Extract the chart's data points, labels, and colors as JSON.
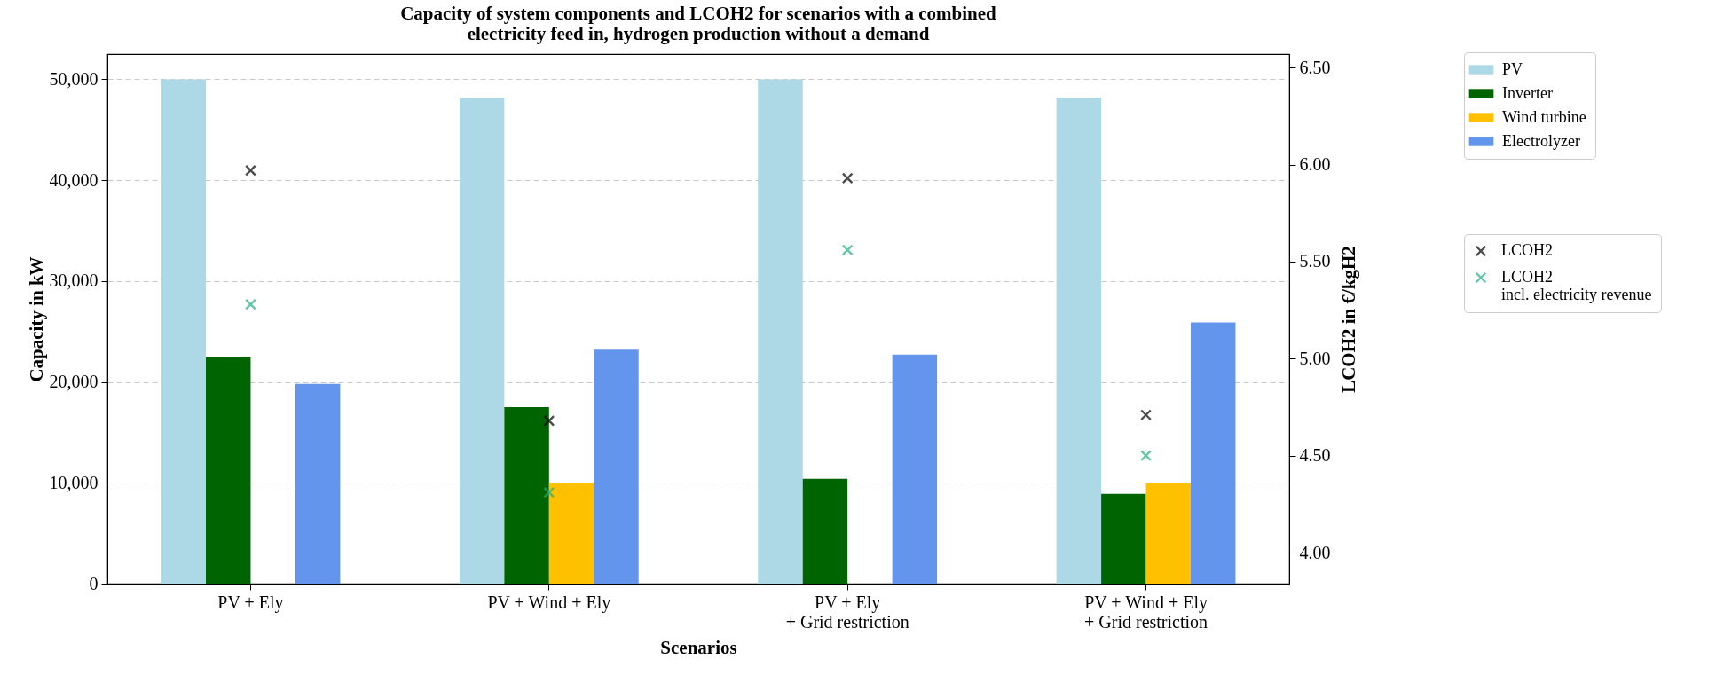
{
  "chart_data": {
    "type": "bar",
    "title": "Capacity of system components and LCOH2 for scenarios with a combined\nelectricity feed in, hydrogen production without a demand",
    "xlabel": "Scenarios",
    "ylabel": "Capacity in kW",
    "y2label": "LCOH2 in €/kgH2",
    "categories": [
      "PV + Ely",
      "PV + Wind + Ely",
      "PV + Ely\n+ Grid restriction",
      "PV + Wind + Ely\n+ Grid restriction"
    ],
    "series": [
      {
        "name": "PV",
        "color": "#add8e6",
        "values": [
          50000,
          48200,
          50000,
          48200
        ]
      },
      {
        "name": "Inverter",
        "color": "#006400",
        "values": [
          22500,
          17500,
          10400,
          8900
        ]
      },
      {
        "name": "Wind turbine",
        "color": "#ffc000",
        "values": [
          null,
          10000,
          null,
          10000
        ]
      },
      {
        "name": "Electrolyzer",
        "color": "#6495ed",
        "values": [
          19800,
          23200,
          22700,
          25900
        ]
      },
      {
        "name": "LCOH2",
        "type": "scatter",
        "axis": "y2",
        "marker": "cross",
        "color": "#000000",
        "values": [
          5.97,
          4.68,
          5.93,
          4.71
        ]
      },
      {
        "name": "LCOH2\nincl. electricity revenue",
        "type": "scatter",
        "axis": "y2",
        "marker": "cross",
        "color": "#22b07d",
        "values": [
          5.28,
          4.31,
          5.56,
          4.5
        ]
      }
    ],
    "ylim": [
      0,
      52500
    ],
    "yticks": [
      0,
      {
        "value": 10000,
        "label": "10,000"
      },
      {
        "value": 20000,
        "label": "20,000"
      },
      {
        "value": 30000,
        "label": "30,000"
      },
      {
        "value": 40000,
        "label": "40,000"
      },
      {
        "value": 50000,
        "label": "50,000"
      }
    ],
    "y2lim": [
      3.84,
      6.57
    ],
    "y2ticks": [
      {
        "value": 4,
        "label": "4.00"
      },
      {
        "value": 4.5,
        "label": "4.50"
      },
      {
        "value": 5,
        "label": "5.00"
      },
      {
        "value": 5.5,
        "label": "5.50"
      },
      {
        "value": 6,
        "label": "6.00"
      },
      {
        "value": 6.5,
        "label": "6.50"
      }
    ],
    "grid": "y",
    "legend": "right"
  }
}
